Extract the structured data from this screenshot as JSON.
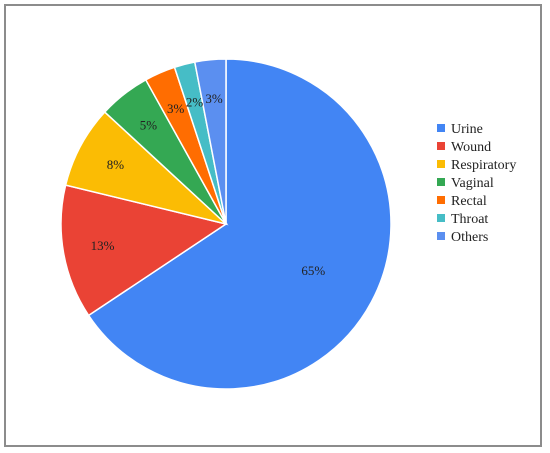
{
  "chart_data": {
    "type": "pie",
    "title": "",
    "legend_position": "right",
    "slices": [
      {
        "label": "Urine",
        "value": 65,
        "display": "65%",
        "color": "#4285f4"
      },
      {
        "label": "Wound",
        "value": 13,
        "display": "13%",
        "color": "#ea4335"
      },
      {
        "label": "Respiratory",
        "value": 8,
        "display": "8%",
        "color": "#fbbc04"
      },
      {
        "label": "Vaginal",
        "value": 5,
        "display": "5%",
        "color": "#34a853"
      },
      {
        "label": "Rectal",
        "value": 3,
        "display": "3%",
        "color": "#ff6d01"
      },
      {
        "label": "Throat",
        "value": 2,
        "display": "2%",
        "color": "#46bdc6"
      },
      {
        "label": "Others",
        "value": 3,
        "display": "3%",
        "color": "#5b8ff0"
      }
    ]
  }
}
